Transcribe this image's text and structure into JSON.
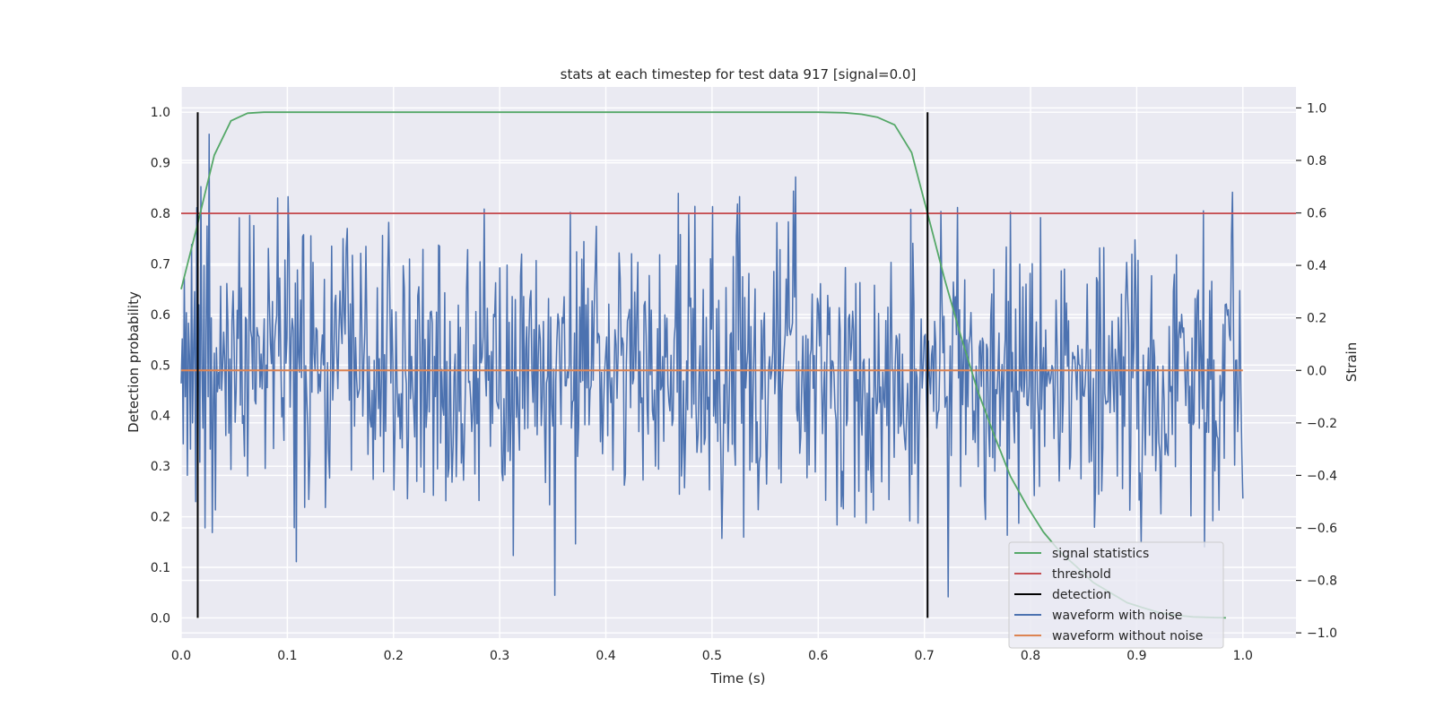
{
  "chart_data": {
    "type": "line",
    "title": "stats at each timestep for test data 917 [signal=0.0]",
    "xlabel": "Time (s)",
    "ylabel_left": "Detection probability",
    "ylabel_right": "Strain",
    "xlim": [
      0.0,
      1.05
    ],
    "ylim_left": [
      -0.04,
      1.05
    ],
    "ylim_right": [
      -1.02,
      1.08
    ],
    "xticks": [
      "0.0",
      "0.1",
      "0.2",
      "0.3",
      "0.4",
      "0.5",
      "0.6",
      "0.7",
      "0.8",
      "0.9",
      "1.0"
    ],
    "yticks_left": [
      "0.0",
      "0.1",
      "0.2",
      "0.3",
      "0.4",
      "0.5",
      "0.6",
      "0.7",
      "0.8",
      "0.9",
      "1.0"
    ],
    "yticks_right": [
      "−1.0",
      "−0.8",
      "−0.6",
      "−0.4",
      "−0.2",
      "0.0",
      "0.2",
      "0.4",
      "0.6",
      "0.8",
      "1.0"
    ],
    "grid": true,
    "legend_position": "lower-right",
    "colors": {
      "signal_statistics": "#55a868",
      "threshold": "#c44e52",
      "detection": "#000000",
      "waveform_with_noise": "#4c72b0",
      "waveform_without_noise": "#dd8452",
      "plot_background": "#eaeaf2",
      "grid": "#ffffff"
    },
    "legend": [
      "signal statistics",
      "threshold",
      "detection",
      "waveform with noise",
      "waveform without noise"
    ],
    "series": [
      {
        "name": "signal statistics",
        "axis": "left",
        "x": [
          0.0,
          0.0156,
          0.0312,
          0.0469,
          0.0625,
          0.0781,
          0.1,
          0.2,
          0.3,
          0.4,
          0.5,
          0.6,
          0.625,
          0.641,
          0.656,
          0.672,
          0.688,
          0.703,
          0.719,
          0.734,
          0.75,
          0.766,
          0.781,
          0.797,
          0.812,
          0.828,
          0.844,
          0.859,
          0.875,
          0.891,
          0.906,
          0.922,
          0.938,
          0.953,
          0.969,
          0.984
        ],
        "y": [
          0.65,
          0.78,
          0.915,
          0.983,
          0.998,
          1.0,
          1.0,
          1.0,
          1.0,
          1.0,
          1.0,
          1.0,
          0.999,
          0.996,
          0.99,
          0.975,
          0.92,
          0.8,
          0.67,
          0.56,
          0.45,
          0.36,
          0.28,
          0.22,
          0.17,
          0.13,
          0.1,
          0.07,
          0.05,
          0.03,
          0.02,
          0.01,
          0.005,
          0.002,
          0.001,
          0.0
        ]
      },
      {
        "name": "threshold",
        "axis": "left",
        "x": [
          0.0,
          1.05
        ],
        "y": [
          0.8,
          0.8
        ]
      },
      {
        "name": "detection",
        "axis": "left",
        "segments": [
          {
            "x": 0.0156,
            "y0": 0.0,
            "y1": 1.0
          },
          {
            "x": 0.703,
            "y0": 0.0,
            "y1": 1.0
          }
        ]
      },
      {
        "name": "waveform with noise",
        "axis": "right",
        "sample_count": 1024,
        "x_range": [
          0.0,
          1.0
        ],
        "y_range": [
          -0.92,
          1.0
        ],
        "std_estimate": 0.27,
        "y_sample": [
          -0.05,
          0.12,
          -0.28,
          0.35,
          -0.1,
          0.22,
          -0.4,
          0.18,
          0.05,
          -0.3,
          0.48,
          -0.2,
          0.1,
          0.3,
          -0.5,
          0.62,
          -0.15,
          0.25,
          -0.35,
          0.7,
          0.02,
          -0.22,
          0.4,
          -0.6,
          0.15,
          0.55,
          -0.1,
          0.9,
          -0.3,
          0.2
        ]
      },
      {
        "name": "waveform without noise",
        "axis": "right",
        "x": [
          0.0,
          1.0
        ],
        "y": [
          0.0,
          0.0
        ]
      }
    ]
  }
}
